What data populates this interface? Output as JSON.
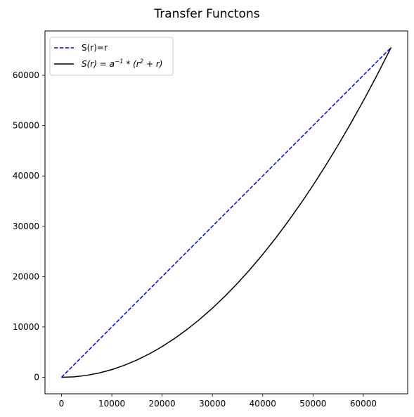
{
  "chart_data": {
    "type": "line",
    "title": "Transfer Functons",
    "xlabel": "",
    "ylabel": "",
    "xlim": [
      -3277,
      68812
    ],
    "ylim": [
      -3277,
      68812
    ],
    "xticks": [
      0,
      10000,
      20000,
      30000,
      40000,
      50000,
      60000
    ],
    "yticks": [
      0,
      10000,
      20000,
      30000,
      40000,
      50000,
      60000
    ],
    "grid": false,
    "legend_position": "top-left",
    "series": [
      {
        "name": "S(r)=r",
        "style": "dashed",
        "color": "#0000ff",
        "x": [
          0,
          65535
        ],
        "y": [
          0,
          65535
        ]
      },
      {
        "name": "S(r) = a⁻¹ * (r² + r)",
        "legend_parts": {
          "s_r": "S(r) = a",
          "exp1": "−1",
          "mid": " * (r",
          "exp2": "2",
          "tail": " + r)"
        },
        "style": "solid",
        "color": "#000000",
        "x": [
          0,
          2500,
          5000,
          7500,
          10000,
          12500,
          15000,
          17500,
          20000,
          22500,
          25000,
          27500,
          30000,
          32500,
          35000,
          37500,
          40000,
          42500,
          45000,
          47500,
          50000,
          52500,
          55000,
          57500,
          60000,
          62500,
          65535
        ],
        "y": [
          0,
          95,
          381,
          858,
          1526,
          2384,
          3433,
          4673,
          6104,
          7725,
          9537,
          11540,
          13733,
          16117,
          18692,
          21458,
          24414,
          27561,
          30899,
          34428,
          38147,
          42057,
          46158,
          50449,
          54932,
          59605,
          65535
        ]
      }
    ]
  }
}
